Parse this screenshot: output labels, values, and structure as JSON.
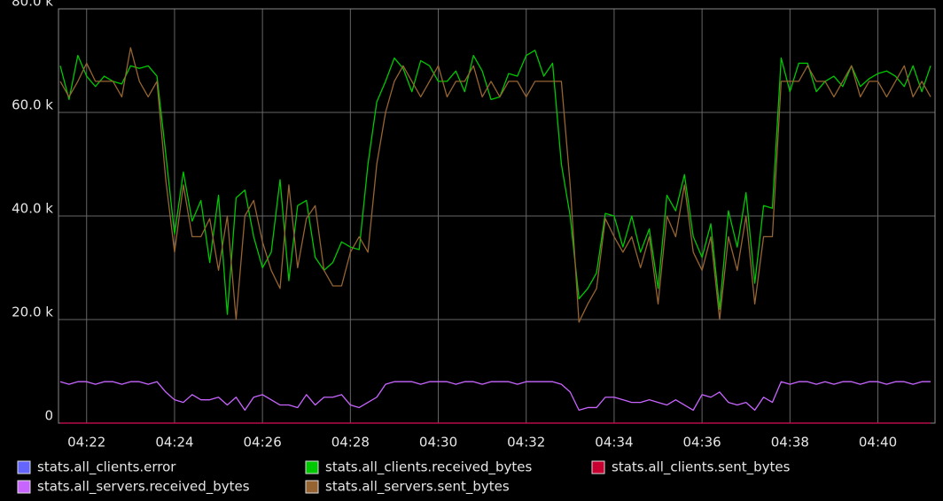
{
  "chart_data": {
    "type": "line",
    "x": [
      261.4,
      261.6,
      261.8,
      262.0,
      262.2,
      262.4,
      262.6,
      262.8,
      263.0,
      263.2,
      263.4,
      263.6,
      263.8,
      264.0,
      264.2,
      264.4,
      264.6,
      264.8,
      265.0,
      265.2,
      265.4,
      265.6,
      265.8,
      266.0,
      266.2,
      266.4,
      266.6,
      266.8,
      267.0,
      267.2,
      267.4,
      267.6,
      267.8,
      268.0,
      268.2,
      268.4,
      268.6,
      268.8,
      269.0,
      269.2,
      269.4,
      269.6,
      269.8,
      270.0,
      270.2,
      270.4,
      270.6,
      270.8,
      271.0,
      271.2,
      271.4,
      271.6,
      271.8,
      272.0,
      272.2,
      272.4,
      272.6,
      272.8,
      273.0,
      273.2,
      273.4,
      273.6,
      273.8,
      274.0,
      274.2,
      274.4,
      274.6,
      274.8,
      275.0,
      275.2,
      275.4,
      275.6,
      275.8,
      276.0,
      276.2,
      276.4,
      276.6,
      276.8,
      277.0,
      277.2,
      277.4,
      277.6,
      277.8,
      278.0,
      278.2,
      278.4,
      278.6,
      278.8,
      279.0,
      279.2,
      279.4,
      279.6,
      279.8,
      280.0,
      280.2,
      280.4,
      280.6,
      280.8,
      281.0,
      281.2
    ],
    "xlim": [
      261.36,
      281.3
    ],
    "xticks": [
      {
        "value": 262,
        "label": "04:22"
      },
      {
        "value": 264,
        "label": "04:24"
      },
      {
        "value": 266,
        "label": "04:26"
      },
      {
        "value": 268,
        "label": "04:28"
      },
      {
        "value": 270,
        "label": "04:30"
      },
      {
        "value": 272,
        "label": "04:32"
      },
      {
        "value": 274,
        "label": "04:34"
      },
      {
        "value": 276,
        "label": "04:36"
      },
      {
        "value": 278,
        "label": "04:38"
      },
      {
        "value": 280,
        "label": "04:40"
      }
    ],
    "ylim": [
      0,
      80000
    ],
    "yticks": [
      0,
      {
        "value": 20000,
        "label": "20.0 k"
      },
      {
        "value": 40000,
        "label": "40.0 k"
      },
      {
        "value": 60000,
        "label": "60.0 k"
      },
      {
        "value": 80000,
        "label": "80.0 k"
      }
    ],
    "grid": true,
    "series": [
      {
        "name": "stats.all_clients.error",
        "color": "#6464ff",
        "values": [
          0,
          0,
          0,
          0,
          0,
          0,
          0,
          0,
          0,
          0,
          0,
          0,
          0,
          0,
          0,
          0,
          0,
          0,
          0,
          0,
          0,
          0,
          0,
          0,
          0,
          0,
          0,
          0,
          0,
          0,
          0,
          0,
          0,
          0,
          0,
          0,
          0,
          0,
          0,
          0,
          0,
          0,
          0,
          0,
          0,
          0,
          0,
          0,
          0,
          0,
          0,
          0,
          0,
          0,
          0,
          0,
          0,
          0,
          0,
          0,
          0,
          0,
          0,
          0,
          0,
          0,
          0,
          0,
          0,
          0,
          0,
          0,
          0,
          0,
          0,
          0,
          0,
          0,
          0,
          0,
          0,
          0,
          0,
          0,
          0,
          0,
          0,
          0,
          0,
          0,
          0,
          0,
          0,
          0,
          0,
          0,
          0,
          0,
          0,
          0
        ]
      },
      {
        "name": "stats.all_clients.received_bytes",
        "color": "#00c800",
        "values": [
          69000,
          62500,
          71000,
          67000,
          65000,
          67000,
          66000,
          65500,
          69000,
          68500,
          69000,
          67000,
          52000,
          36500,
          48500,
          39000,
          43000,
          31000,
          44000,
          21000,
          43500,
          45000,
          36000,
          30000,
          33000,
          47000,
          27500,
          42000,
          43000,
          32000,
          29500,
          31000,
          35000,
          34000,
          33500,
          50000,
          62000,
          66000,
          70500,
          68500,
          64000,
          70000,
          69000,
          66000,
          66000,
          68000,
          64000,
          71000,
          68000,
          62500,
          63000,
          67500,
          67000,
          71000,
          72000,
          67000,
          69500,
          50000,
          40000,
          24000,
          26000,
          29000,
          40500,
          40000,
          34000,
          40000,
          33000,
          37500,
          26000,
          44000,
          41000,
          48000,
          36000,
          32000,
          38500,
          22000,
          41000,
          34000,
          44500,
          27000,
          42000,
          41500,
          70500,
          64000,
          69500,
          69500,
          64000,
          66000,
          67000,
          65000,
          69000,
          65000,
          66500,
          67500,
          68000,
          67000,
          65000,
          69000,
          64000,
          69000
        ]
      },
      {
        "name": "stats.all_clients.sent_bytes",
        "color": "#c80032",
        "values": [
          0,
          0,
          0,
          0,
          0,
          0,
          0,
          0,
          0,
          0,
          0,
          0,
          0,
          0,
          0,
          0,
          0,
          0,
          0,
          0,
          0,
          0,
          0,
          0,
          0,
          0,
          0,
          0,
          0,
          0,
          0,
          0,
          0,
          0,
          0,
          0,
          0,
          0,
          0,
          0,
          0,
          0,
          0,
          0,
          0,
          0,
          0,
          0,
          0,
          0,
          0,
          0,
          0,
          0,
          0,
          0,
          0,
          0,
          0,
          0,
          0,
          0,
          0,
          0,
          0,
          0,
          0,
          0,
          0,
          0,
          0,
          0,
          0,
          0,
          0,
          0,
          0,
          0,
          0,
          0,
          0,
          0,
          0,
          0,
          0,
          0,
          0,
          0,
          0,
          0,
          0,
          0,
          0,
          0,
          0,
          0,
          0,
          0,
          0,
          0
        ]
      },
      {
        "name": "stats.all_servers.received_bytes",
        "color": "#c864ff",
        "values": [
          8000,
          7500,
          8000,
          8000,
          7500,
          8000,
          8000,
          7500,
          8000,
          8000,
          7500,
          8000,
          6000,
          4500,
          4000,
          5500,
          4500,
          4500,
          5000,
          3500,
          5000,
          2500,
          5000,
          5500,
          4500,
          3500,
          3500,
          3000,
          5500,
          3500,
          5000,
          5000,
          5500,
          3500,
          3000,
          4000,
          5000,
          7500,
          8000,
          8000,
          8000,
          7500,
          8000,
          8000,
          8000,
          7500,
          8000,
          8000,
          7500,
          8000,
          8000,
          8000,
          7500,
          8000,
          8000,
          8000,
          8000,
          7500,
          6000,
          2500,
          3000,
          3000,
          5000,
          5000,
          4500,
          4000,
          4000,
          4500,
          4000,
          3500,
          4500,
          3500,
          2500,
          5500,
          5000,
          6000,
          4000,
          3500,
          4000,
          2500,
          5000,
          4000,
          8000,
          7500,
          8000,
          8000,
          7500,
          8000,
          7500,
          8000,
          8000,
          7500,
          8000,
          8000,
          7500,
          8000,
          8000,
          7500,
          8000,
          8000
        ]
      },
      {
        "name": "stats.all_servers.sent_bytes",
        "color": "#966432",
        "values": [
          66000,
          63000,
          66000,
          69500,
          66000,
          66000,
          66000,
          63000,
          72500,
          66000,
          63000,
          66000,
          47000,
          33000,
          46000,
          36000,
          36000,
          39500,
          29500,
          40000,
          20000,
          40000,
          43000,
          35000,
          29500,
          26000,
          46000,
          30000,
          39500,
          42000,
          29500,
          26500,
          26500,
          33000,
          36000,
          33000,
          50000,
          60000,
          66000,
          69000,
          66000,
          63000,
          66000,
          69000,
          63000,
          66000,
          66000,
          69000,
          63000,
          66000,
          63000,
          66000,
          66000,
          63000,
          66000,
          66000,
          66000,
          66000,
          46000,
          19500,
          23000,
          26000,
          39500,
          36000,
          33000,
          36000,
          30000,
          36000,
          23000,
          40000,
          36000,
          46000,
          33000,
          29500,
          36000,
          20000,
          36000,
          29500,
          40000,
          23000,
          36000,
          36000,
          66000,
          66000,
          66000,
          69000,
          66000,
          66000,
          63000,
          66000,
          69000,
          63000,
          66000,
          66000,
          63000,
          66000,
          69000,
          63000,
          66000,
          63000
        ]
      }
    ]
  }
}
